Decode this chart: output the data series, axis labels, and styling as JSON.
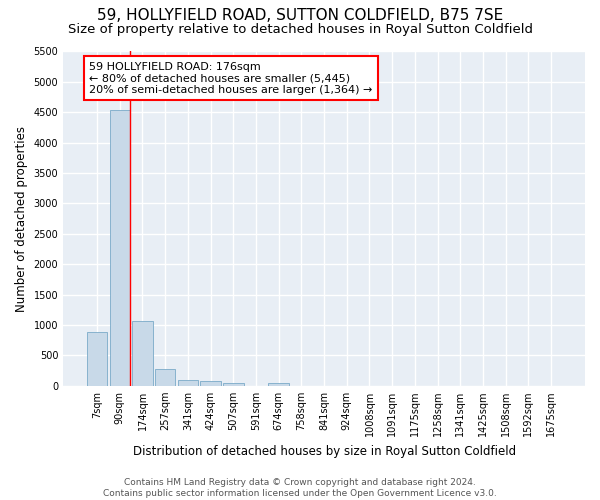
{
  "title_line1": "59, HOLLYFIELD ROAD, SUTTON COLDFIELD, B75 7SE",
  "title_line2": "Size of property relative to detached houses in Royal Sutton Coldfield",
  "xlabel": "Distribution of detached houses by size in Royal Sutton Coldfield",
  "ylabel": "Number of detached properties",
  "bar_labels": [
    "7sqm",
    "90sqm",
    "174sqm",
    "257sqm",
    "341sqm",
    "424sqm",
    "507sqm",
    "591sqm",
    "674sqm",
    "758sqm",
    "841sqm",
    "924sqm",
    "1008sqm",
    "1091sqm",
    "1175sqm",
    "1258sqm",
    "1341sqm",
    "1425sqm",
    "1508sqm",
    "1592sqm",
    "1675sqm"
  ],
  "bar_values": [
    880,
    4540,
    1060,
    280,
    90,
    80,
    50,
    0,
    50,
    0,
    0,
    0,
    0,
    0,
    0,
    0,
    0,
    0,
    0,
    0,
    0
  ],
  "bar_color": "#c8d9e8",
  "bar_edge_color": "#7aaac8",
  "annotation_text": "59 HOLLYFIELD ROAD: 176sqm\n← 80% of detached houses are smaller (5,445)\n20% of semi-detached houses are larger (1,364) →",
  "annotation_box_color": "white",
  "annotation_box_edge_color": "red",
  "vline_bar_index": 1,
  "vline_side": "right",
  "vline_color": "red",
  "ylim": [
    0,
    5500
  ],
  "yticks": [
    0,
    500,
    1000,
    1500,
    2000,
    2500,
    3000,
    3500,
    4000,
    4500,
    5000,
    5500
  ],
  "background_color": "#e8eef5",
  "footer_line1": "Contains HM Land Registry data © Crown copyright and database right 2024.",
  "footer_line2": "Contains public sector information licensed under the Open Government Licence v3.0.",
  "title_fontsize": 11,
  "subtitle_fontsize": 9.5,
  "axis_label_fontsize": 8.5,
  "tick_fontsize": 7,
  "footer_fontsize": 6.5,
  "annotation_fontsize": 8
}
